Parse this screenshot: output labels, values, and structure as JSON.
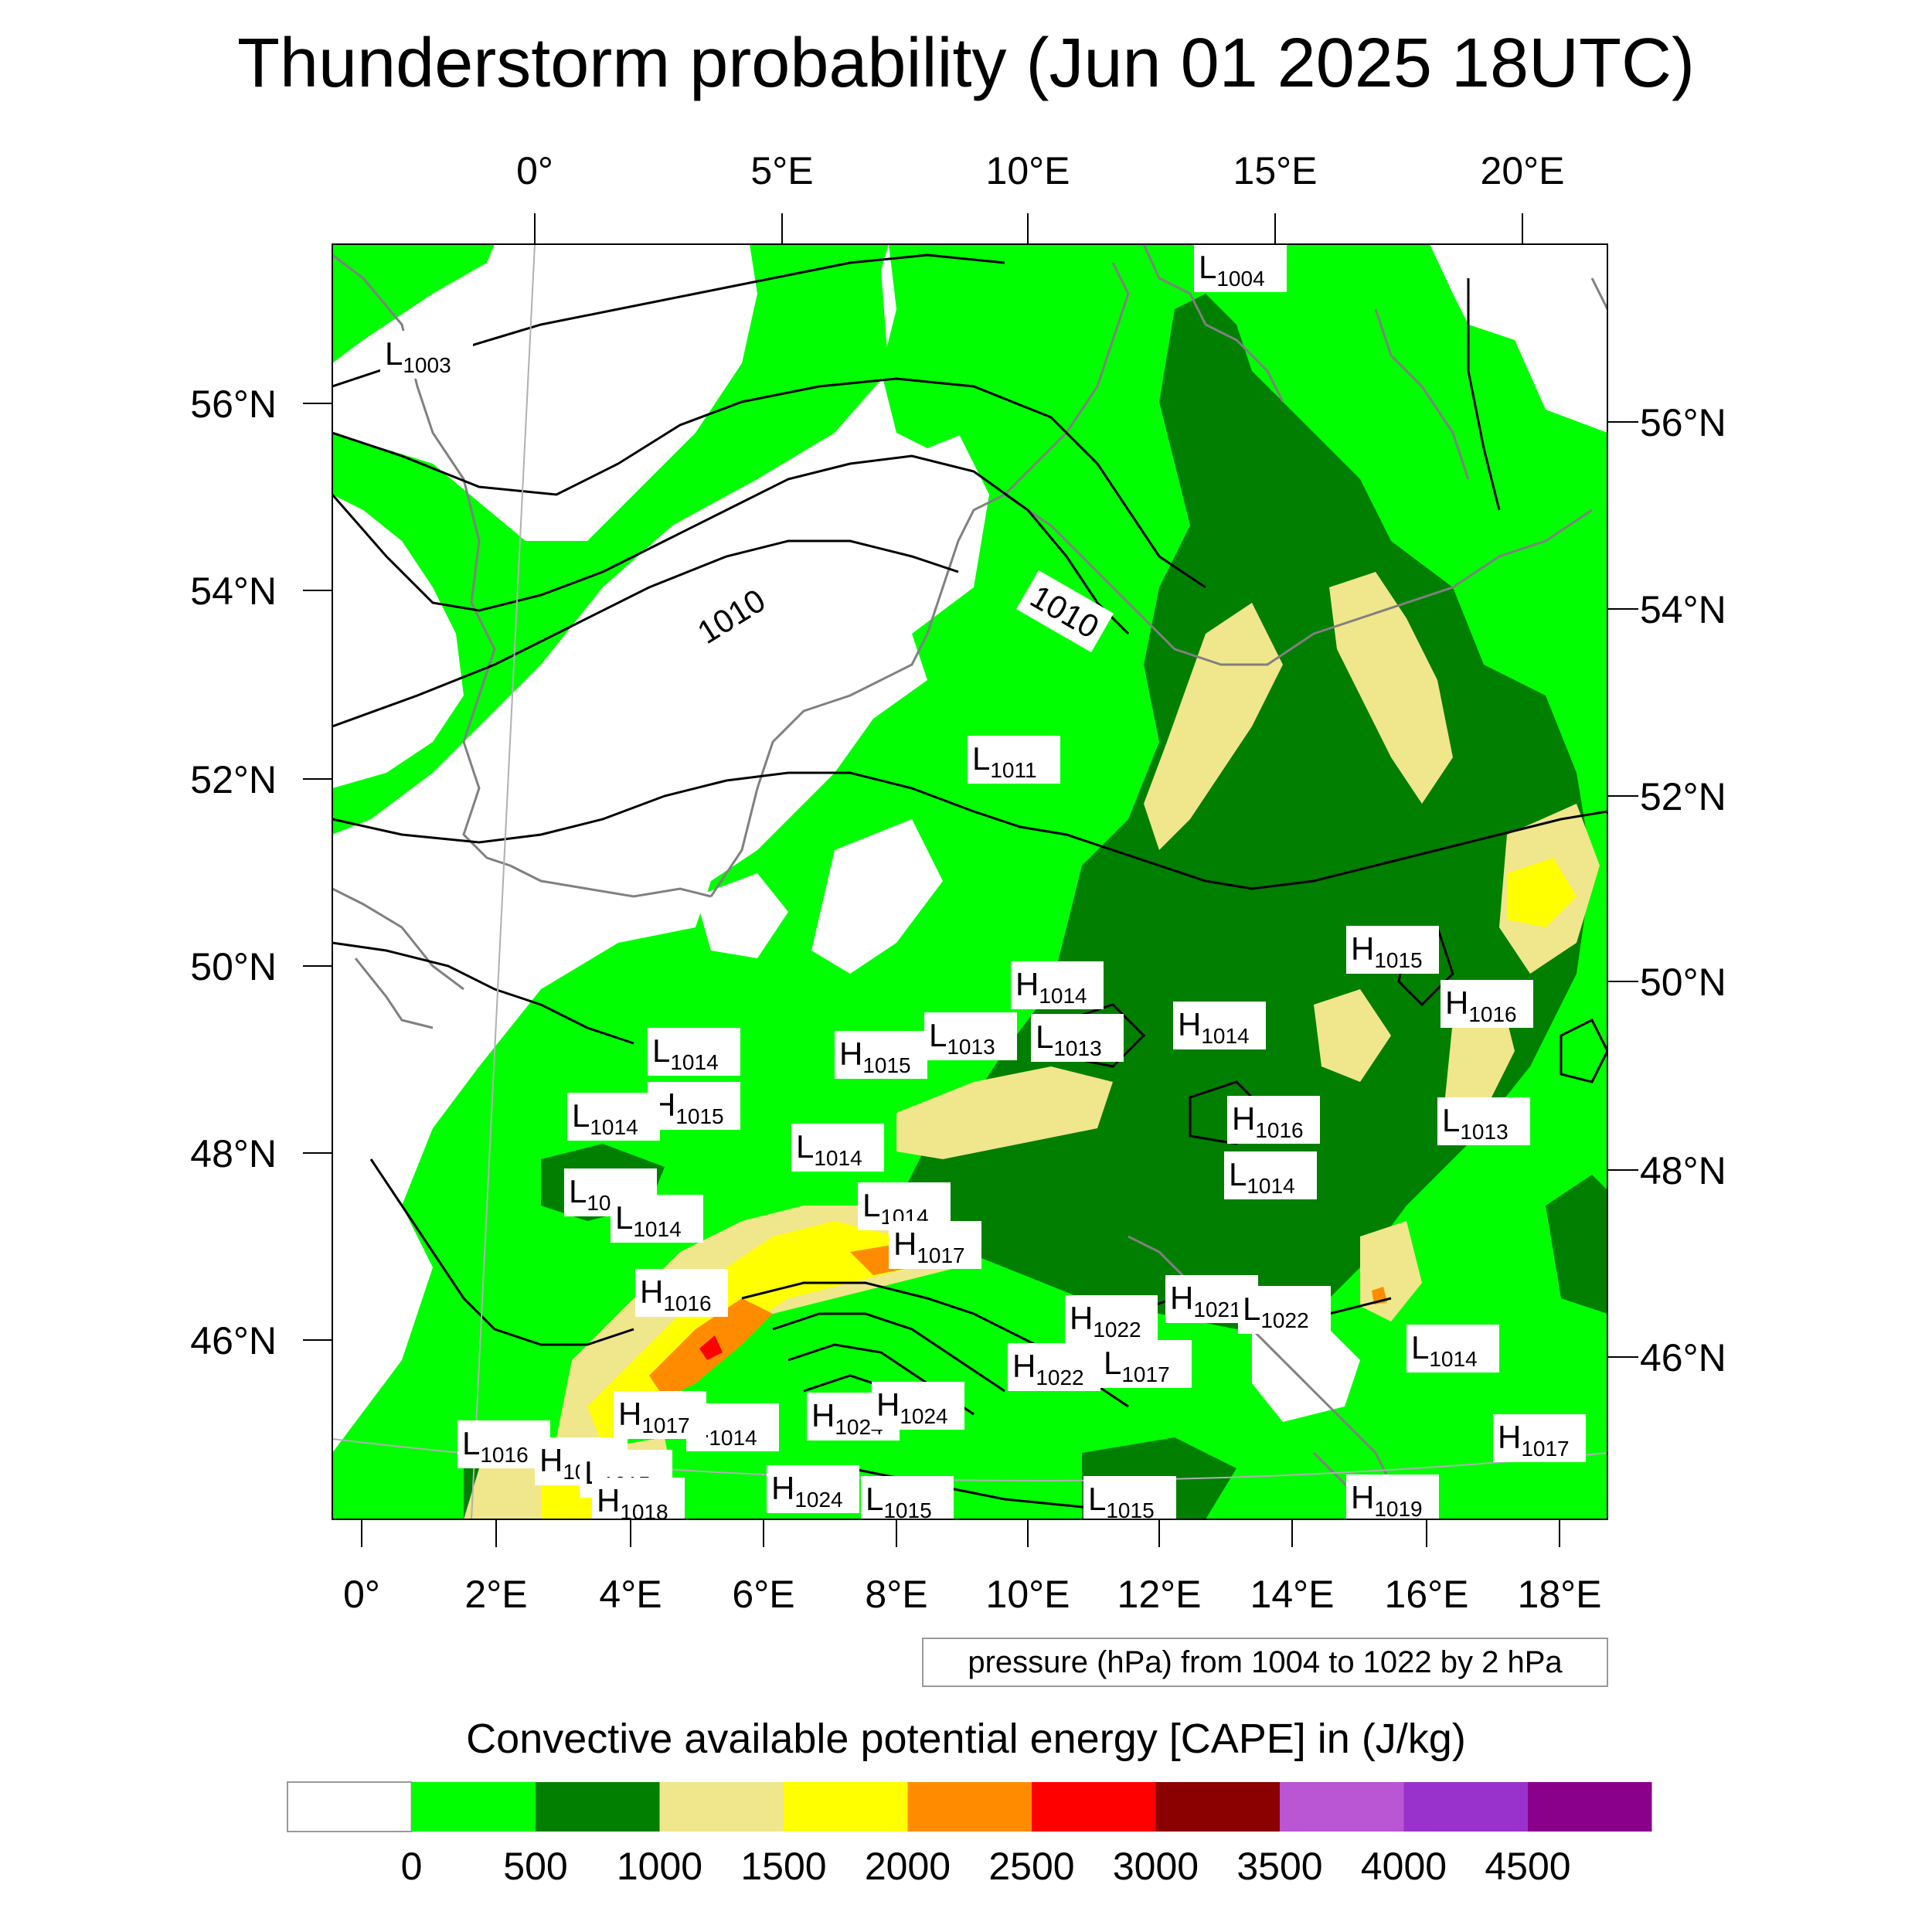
{
  "title": "Thunderstorm probability (Jun 01 2025 18UTC)",
  "top_lon_labels": [
    "0°",
    "5°E",
    "10°E",
    "15°E",
    "20°E"
  ],
  "bottom_lon_labels": [
    "0°",
    "2°E",
    "4°E",
    "6°E",
    "8°E",
    "10°E",
    "12°E",
    "14°E",
    "16°E",
    "18°E"
  ],
  "left_lat_labels": [
    "56°N",
    "54°N",
    "52°N",
    "50°N",
    "48°N",
    "46°N"
  ],
  "right_lat_labels": [
    "56°N",
    "54°N",
    "52°N",
    "50°N",
    "48°N",
    "46°N"
  ],
  "isobar_labels": [
    "1010",
    "1010"
  ],
  "pressure_centers": [
    {
      "type": "L",
      "value": "1004"
    },
    {
      "type": "L",
      "value": "1003"
    },
    {
      "type": "L",
      "value": "1011"
    },
    {
      "type": "H",
      "value": "1015"
    },
    {
      "type": "H",
      "value": "1016"
    },
    {
      "type": "H",
      "value": "1014"
    },
    {
      "type": "L",
      "value": "1013"
    },
    {
      "type": "L",
      "value": "1013"
    },
    {
      "type": "H",
      "value": "1014"
    },
    {
      "type": "H",
      "value": "1015"
    },
    {
      "type": "L",
      "value": "1014"
    },
    {
      "type": "H",
      "value": "1015"
    },
    {
      "type": "L",
      "value": "1014"
    },
    {
      "type": "H",
      "value": "1016"
    },
    {
      "type": "L",
      "value": "1013"
    },
    {
      "type": "L",
      "value": "1014"
    },
    {
      "type": "L",
      "value": "1014"
    },
    {
      "type": "L",
      "value": "1014"
    },
    {
      "type": "L",
      "value": "1014"
    },
    {
      "type": "L",
      "value": "1014"
    },
    {
      "type": "H",
      "value": "1017"
    },
    {
      "type": "H",
      "value": "1016"
    },
    {
      "type": "H",
      "value": "1021"
    },
    {
      "type": "L",
      "value": "1022"
    },
    {
      "type": "H",
      "value": "1022"
    },
    {
      "type": "L",
      "value": "1014"
    },
    {
      "type": "H",
      "value": "1022"
    },
    {
      "type": "L",
      "value": "1017"
    },
    {
      "type": "H",
      "value": "1017"
    },
    {
      "type": "L",
      "value": "1014"
    },
    {
      "type": "H",
      "value": "1024"
    },
    {
      "type": "H",
      "value": "1024"
    },
    {
      "type": "L",
      "value": "1016"
    },
    {
      "type": "H",
      "value": "1018"
    },
    {
      "type": "L",
      "value": "1015"
    },
    {
      "type": "H",
      "value": "1017"
    },
    {
      "type": "H",
      "value": "1024"
    },
    {
      "type": "L",
      "value": "1015"
    },
    {
      "type": "L",
      "value": "1015"
    },
    {
      "type": "H",
      "value": "1018"
    },
    {
      "type": "H",
      "value": "1019"
    }
  ],
  "contour_info": "pressure (hPa) from 1004 to 1022 by 2 hPa",
  "colorbar": {
    "title": "Convective available potential energy [CAPE] in (J/kg)",
    "labels": [
      "0",
      "500",
      "1000",
      "1500",
      "2000",
      "2500",
      "3000",
      "3500",
      "4000",
      "4500"
    ],
    "colors": [
      "#ffffff",
      "#00ff00",
      "#007f00",
      "#f0e68c",
      "#ffff00",
      "#ff8c00",
      "#ff0000",
      "#8b0000",
      "#ba55d3",
      "#9932cc",
      "#8b008b"
    ]
  },
  "colors": {
    "light_green": "#00ff00",
    "dark_green": "#007f00",
    "khaki": "#f0e68c",
    "yellow": "#ffff00",
    "orange": "#ff8c00",
    "red": "#ff0000",
    "coastline": "#808080",
    "isobar": "#000000"
  }
}
